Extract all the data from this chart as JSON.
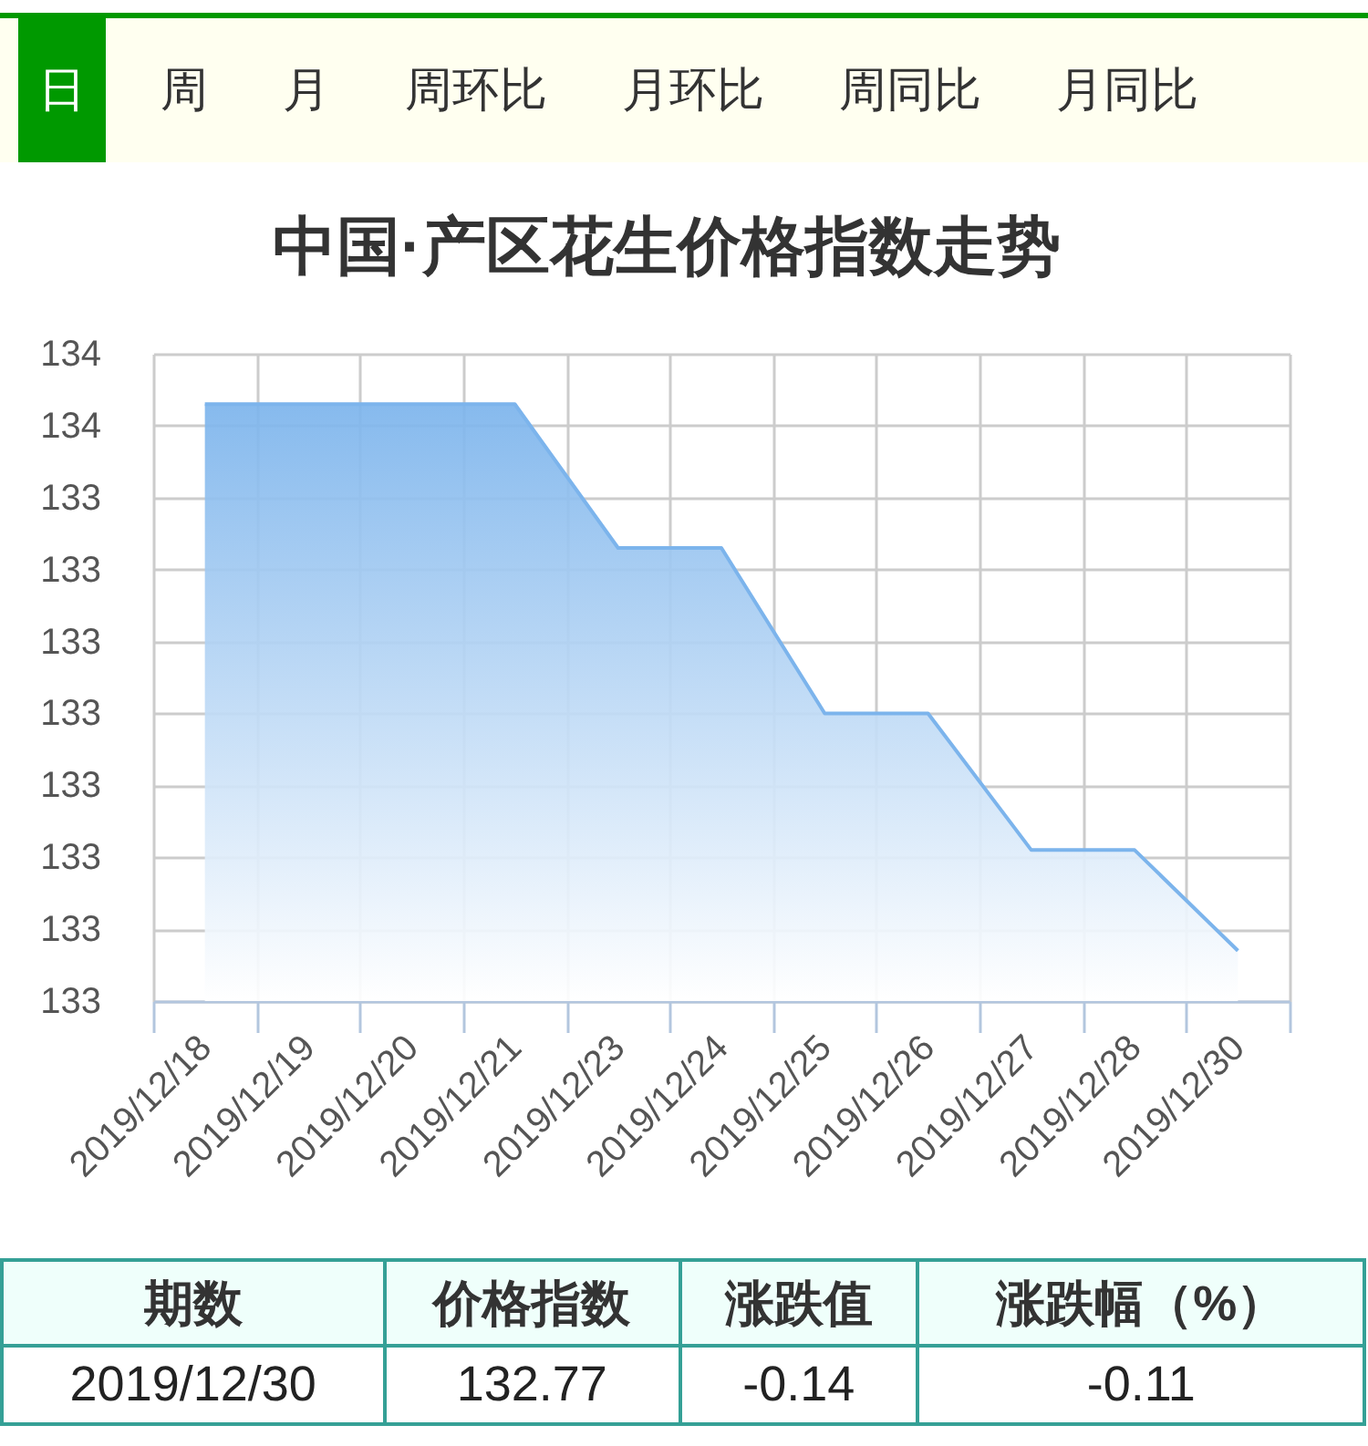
{
  "chart_data": [
    {
      "type": "other",
      "annotations": [
        "日",
        "周",
        "月",
        "周环比",
        "月环比",
        "周同比",
        "月同比"
      ]
    },
    {
      "type": "area",
      "title": "中国·产区花生价格指数走势",
      "categories": [
        "2019/12/18",
        "2019/12/19",
        "2019/12/20",
        "2019/12/21",
        "2019/12/23",
        "2019/12/24",
        "2019/12/25",
        "2019/12/26",
        "2019/12/27",
        "2019/12/28",
        "2019/12/30"
      ],
      "values": [
        133.53,
        133.53,
        133.53,
        133.53,
        133.33,
        133.33,
        133.1,
        133.1,
        132.91,
        132.91,
        132.77
      ],
      "color": "#7cb4ec",
      "ylim": [
        132.7,
        133.6
      ],
      "yticks": [
        {
          "value": 132.7,
          "label": "133"
        },
        {
          "value": 132.8,
          "label": "133"
        },
        {
          "value": 132.9,
          "label": "133"
        },
        {
          "value": 133.0,
          "label": "133"
        },
        {
          "value": 133.1,
          "label": "133"
        },
        {
          "value": 133.2,
          "label": "133"
        },
        {
          "value": 133.3,
          "label": "133"
        },
        {
          "value": 133.4,
          "label": "133"
        },
        {
          "value": 133.5,
          "label": "134"
        },
        {
          "value": 133.6,
          "label": "134"
        }
      ],
      "grid": true
    },
    {
      "type": "other",
      "annotations": [
        "期数",
        "价格指数",
        "涨跌值",
        "涨跌幅（%）",
        "2019/12/30",
        "132.77",
        "-0.14",
        "-0.11"
      ]
    }
  ]
}
